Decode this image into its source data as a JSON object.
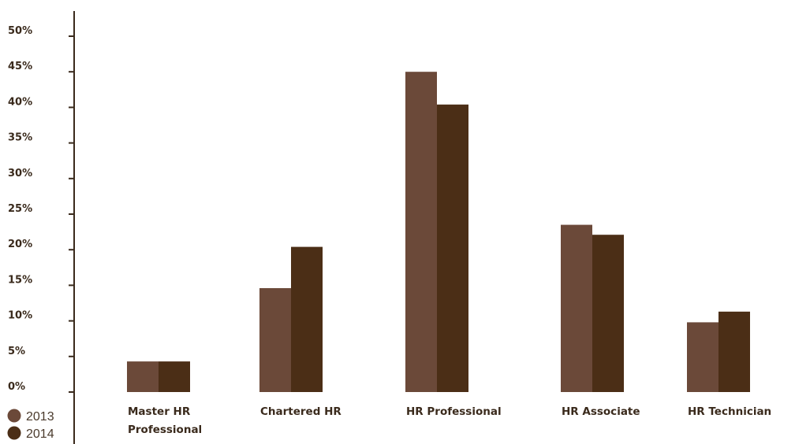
{
  "chart_data": {
    "type": "bar",
    "categories": [
      [
        "Master HR",
        "Professional"
      ],
      [
        "Chartered HR"
      ],
      [
        "HR Professional"
      ],
      [
        "HR Associate"
      ],
      [
        "HR Technician"
      ]
    ],
    "series": [
      {
        "name": "2013",
        "color": "#6b4939",
        "values": [
          4.3,
          14.6,
          45.0,
          23.5,
          9.8
        ]
      },
      {
        "name": "2014",
        "color": "#4b2e16",
        "values": [
          4.3,
          20.4,
          40.4,
          22.1,
          11.3
        ]
      }
    ],
    "yticks": [
      "0%",
      "5%",
      "10%",
      "15%",
      "20%",
      "25%",
      "30%",
      "35%",
      "40%",
      "45%",
      "50%"
    ],
    "ylim": [
      0,
      50
    ],
    "grid": false,
    "legend_position": "bottom-left",
    "axis_color": "#3a2a1c"
  }
}
